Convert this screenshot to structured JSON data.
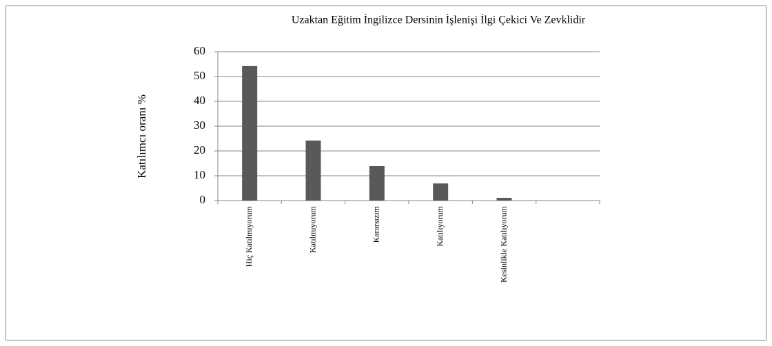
{
  "chart_data": {
    "type": "bar",
    "title": "Uzaktan Eğitim İngilizce Dersinin İşlenişi İlgi Çekici Ve Zevklidir",
    "y_label": "Katılımcı oranı %",
    "categories": [
      "Hiç Katılmıyorum",
      "Katılmıyorum",
      "Kararsızım",
      "Katılıyorum",
      "Kesinlikle Katılıyorum",
      null
    ],
    "values": [
      54.2,
      24.2,
      13.9,
      6.9,
      1.1,
      null
    ],
    "color": "#595959",
    "ylim": [
      0,
      60
    ],
    "yticks": [
      0,
      10,
      20,
      30,
      40,
      50,
      60
    ],
    "grid": true
  }
}
